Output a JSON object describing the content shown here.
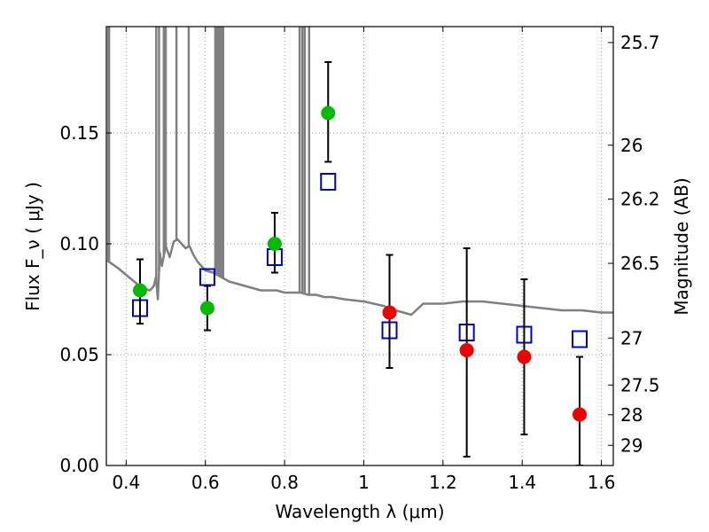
{
  "chart_data": {
    "type": "scatter",
    "title": "",
    "xlabel": "Wavelength  λ (μm)",
    "ylabel": "Flux  F_ν  ( μJy )",
    "y2label": "Magnitude (AB)",
    "xlim": [
      0.35,
      1.63
    ],
    "ylim": [
      0.0,
      0.198
    ],
    "grid": true,
    "xticks": [
      0.4,
      0.6,
      0.8,
      1.0,
      1.2,
      1.4,
      1.6
    ],
    "xtick_labels": [
      "0.4",
      "0.6",
      "0.8",
      "1",
      "1.2",
      "1.4",
      "1.6"
    ],
    "yticks": [
      0.0,
      0.05,
      0.1,
      0.15
    ],
    "ytick_labels": [
      "0.00",
      "0.05",
      "0.10",
      "0.15"
    ],
    "y2ticks": [
      {
        "label": "25.7",
        "flux": 0.1908
      },
      {
        "label": "26",
        "flux": 0.1445
      },
      {
        "label": "26.2",
        "flux": 0.1202
      },
      {
        "label": "26.5",
        "flux": 0.0912
      },
      {
        "label": "27",
        "flux": 0.0575
      },
      {
        "label": "27.5",
        "flux": 0.0363
      },
      {
        "label": "28",
        "flux": 0.0229
      },
      {
        "label": "29",
        "flux": 0.0091
      }
    ],
    "colors": {
      "template": "#808080",
      "model": "#0000cc",
      "detected": "#00bb00",
      "nir": "#ee0000",
      "errorbar": "#000000",
      "grid": "#999999"
    },
    "series": [
      {
        "name": "",
        "kind": "line",
        "x": [
          0.352,
          0.356,
          0.36,
          0.38,
          0.4,
          0.42,
          0.44,
          0.46,
          0.47,
          0.475,
          0.48,
          0.485,
          0.49,
          0.5,
          0.51,
          0.52,
          0.53,
          0.54,
          0.55,
          0.56,
          0.57,
          0.58,
          0.6,
          0.62,
          0.64,
          0.66,
          0.68,
          0.7,
          0.72,
          0.74,
          0.76,
          0.78,
          0.8,
          0.82,
          0.84,
          0.86,
          0.88,
          0.9,
          0.92,
          0.95,
          1.0,
          1.05,
          1.08,
          1.1,
          1.12,
          1.15,
          1.2,
          1.25,
          1.3,
          1.35,
          1.4,
          1.45,
          1.5,
          1.55,
          1.6,
          1.63
        ],
        "y": [
          0.0925,
          0.092,
          0.0915,
          0.089,
          0.086,
          0.083,
          0.08,
          0.079,
          0.081,
          0.085,
          0.075,
          0.096,
          0.09,
          0.099,
          0.094,
          0.101,
          0.102,
          0.1,
          0.098,
          0.099,
          0.095,
          0.092,
          0.088,
          0.087,
          0.085,
          0.083,
          0.082,
          0.081,
          0.08,
          0.079,
          0.079,
          0.079,
          0.078,
          0.078,
          0.078,
          0.077,
          0.077,
          0.076,
          0.076,
          0.075,
          0.074,
          0.072,
          0.07,
          0.069,
          0.068,
          0.073,
          0.073,
          0.074,
          0.074,
          0.073,
          0.072,
          0.071,
          0.07,
          0.07,
          0.069,
          0.069
        ],
        "spikes": [
          0.355,
          0.357,
          0.476,
          0.483,
          0.495,
          0.5,
          0.527,
          0.558,
          0.625,
          0.628,
          0.632,
          0.636,
          0.64,
          0.645,
          0.838,
          0.845,
          0.851,
          0.862
        ]
      },
      {
        "name": "",
        "kind": "squares",
        "x": [
          0.435,
          0.605,
          0.775,
          0.91,
          1.065,
          1.26,
          1.405,
          1.545
        ],
        "y": [
          0.071,
          0.085,
          0.094,
          0.128,
          0.061,
          0.06,
          0.059,
          0.057
        ]
      },
      {
        "name": "",
        "kind": "points",
        "color_key": "detected",
        "x": [
          0.435,
          0.605,
          0.775,
          0.91
        ],
        "y": [
          0.079,
          0.071,
          0.1,
          0.159
        ],
        "yerr_low": [
          0.064,
          0.061,
          0.087,
          0.137
        ],
        "yerr_high": [
          0.093,
          0.081,
          0.114,
          0.182
        ]
      },
      {
        "name": "",
        "kind": "points",
        "color_key": "nir",
        "x": [
          1.065,
          1.26,
          1.405,
          1.545
        ],
        "y": [
          0.069,
          0.052,
          0.049,
          0.023
        ],
        "yerr_low": [
          0.044,
          0.004,
          0.014,
          0.0
        ],
        "yerr_high": [
          0.095,
          0.098,
          0.084,
          0.049
        ]
      }
    ]
  }
}
